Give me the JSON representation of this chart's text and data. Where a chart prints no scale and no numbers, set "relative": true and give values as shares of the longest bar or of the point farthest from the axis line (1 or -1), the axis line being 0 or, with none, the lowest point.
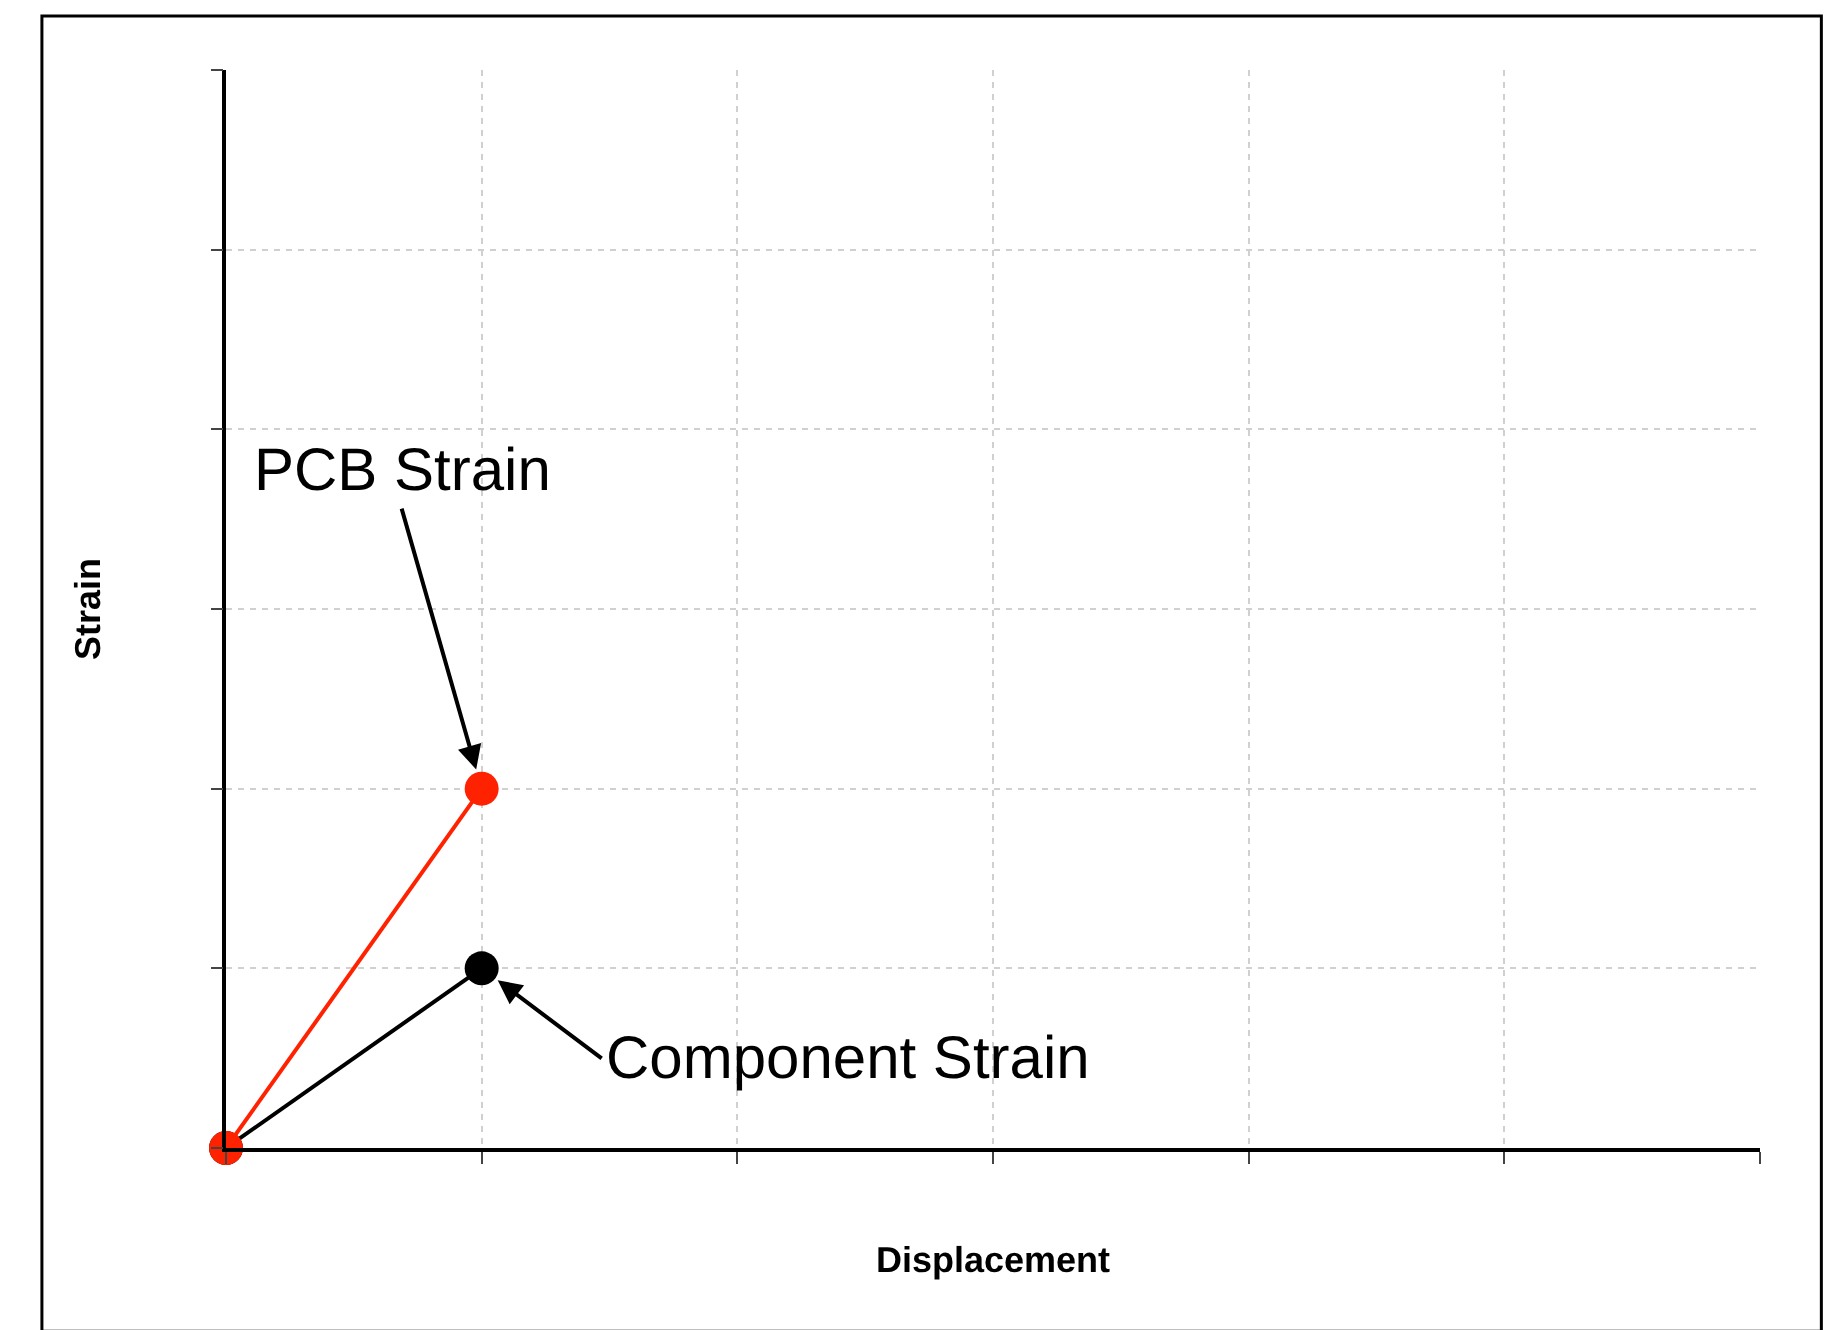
{
  "chart_data": {
    "type": "line",
    "relative": true,
    "xlabel": "Displacement",
    "ylabel": "Strain",
    "categories": [
      null,
      null,
      null,
      null,
      null,
      null,
      null
    ],
    "series": [
      {
        "name": "PCB Strain",
        "color": "#ff2200",
        "values": [
          0,
          1,
          null,
          null,
          null,
          null,
          null
        ]
      },
      {
        "name": "Component Strain",
        "color": "#000000",
        "values": [
          0,
          0.5,
          null,
          null,
          null,
          null,
          null
        ]
      }
    ],
    "marker": "circle",
    "line_style": "solid",
    "grid": true,
    "legend": false
  }
}
